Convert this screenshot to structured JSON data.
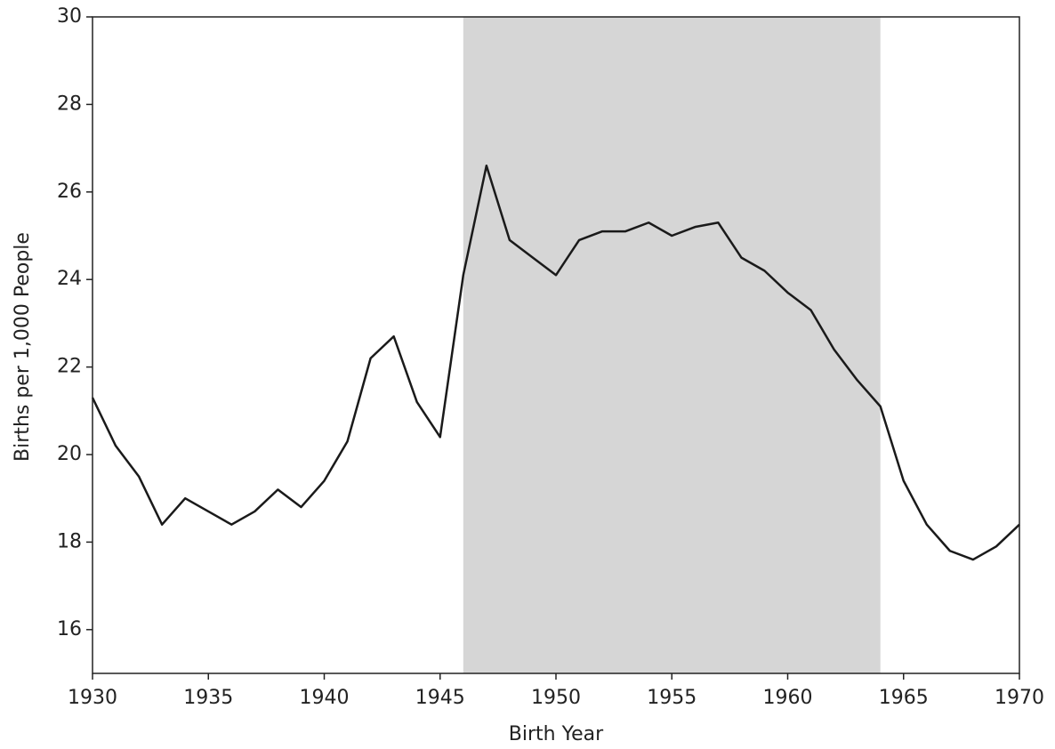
{
  "chart_data": {
    "type": "line",
    "xlabel": "Birth Year",
    "ylabel": "Births per 1,000 People",
    "x": [
      1930,
      1931,
      1932,
      1933,
      1934,
      1935,
      1936,
      1937,
      1938,
      1939,
      1940,
      1941,
      1942,
      1943,
      1944,
      1945,
      1946,
      1947,
      1948,
      1949,
      1950,
      1951,
      1952,
      1953,
      1954,
      1955,
      1956,
      1957,
      1958,
      1959,
      1960,
      1961,
      1962,
      1963,
      1964,
      1965,
      1966,
      1967,
      1968,
      1969,
      1970
    ],
    "series": [
      {
        "color": "#1a1a1a",
        "values": [
          21.3,
          20.2,
          19.5,
          18.4,
          19.0,
          18.7,
          18.4,
          18.7,
          19.2,
          18.8,
          19.4,
          20.3,
          22.2,
          22.7,
          21.2,
          20.4,
          24.1,
          26.6,
          24.9,
          24.5,
          24.1,
          24.9,
          25.1,
          25.1,
          25.3,
          25.0,
          25.2,
          25.3,
          24.5,
          24.2,
          23.7,
          23.3,
          22.4,
          21.7,
          21.1,
          19.4,
          18.4,
          17.8,
          17.6,
          17.9,
          18.4
        ]
      }
    ],
    "shaded_span": [
      1946,
      1964
    ],
    "shade_color": "#d6d6d6",
    "xlim": [
      1930,
      1970
    ],
    "xticks": [
      1930,
      1935,
      1940,
      1945,
      1950,
      1955,
      1960,
      1965,
      1970
    ],
    "ylim": [
      15,
      30
    ],
    "yticks": [
      16,
      18,
      20,
      22,
      24,
      26,
      28,
      30
    ]
  }
}
